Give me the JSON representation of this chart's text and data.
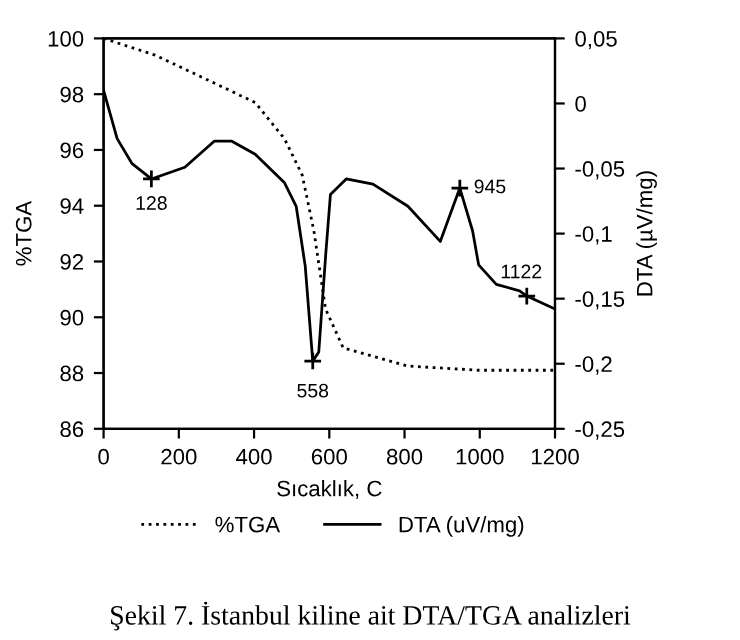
{
  "chart_data": {
    "type": "line",
    "xlabel": "Sıcaklık, C",
    "ylabel": "%TGA",
    "y2label": "DTA (µV/mg)",
    "x": [
      0,
      36,
      75,
      127,
      216,
      294,
      341,
      403,
      481,
      512,
      536,
      556,
      572,
      591,
      603,
      645,
      716,
      809,
      895,
      947,
      981,
      997,
      1044,
      1106,
      1125,
      1200
    ],
    "series": [
      {
        "name": "%TGA",
        "color": "#000000",
        "line_style": "dotted",
        "x": [
          0,
          137,
          294,
          403,
          481,
          528,
          559,
          590,
          637,
          809,
          997,
          1200
        ],
        "values": [
          100,
          99.4,
          98.4,
          97.7,
          96.4,
          95.1,
          93.1,
          90.3,
          88.9,
          88.25,
          88.1,
          88.1
        ]
      },
      {
        "name": "DTA (uV/mg)",
        "color": "#000000",
        "line_style": "solid",
        "axis": "y2",
        "values": [
          0.01,
          -0.027,
          -0.046,
          -0.058,
          -0.049,
          -0.029,
          -0.029,
          -0.039,
          -0.061,
          -0.079,
          -0.125,
          -0.198,
          -0.191,
          -0.114,
          -0.07,
          -0.058,
          -0.062,
          -0.079,
          -0.106,
          -0.065,
          -0.098,
          -0.124,
          -0.139,
          -0.144,
          -0.148,
          -0.158
        ]
      }
    ],
    "xlim": [
      0,
      1200
    ],
    "xticks": [
      0,
      200,
      400,
      600,
      800,
      1000,
      1200
    ],
    "ylim": [
      86,
      100
    ],
    "yticks": [
      86,
      88,
      90,
      92,
      94,
      96,
      98,
      100
    ],
    "y2lim": [
      -0.25,
      0.05
    ],
    "y2ticks": [
      {
        "value": -0.25,
        "label": "-0,25"
      },
      {
        "value": -0.2,
        "label": "-0,2"
      },
      {
        "value": -0.15,
        "label": "-0,15"
      },
      {
        "value": -0.1,
        "label": "-0,1"
      },
      {
        "value": -0.05,
        "label": "-0,05"
      },
      {
        "value": 0,
        "label": "0"
      },
      {
        "value": 0.05,
        "label": "0,05"
      }
    ],
    "annotations": [
      {
        "text": "128",
        "x": 127,
        "y": 94.96
      },
      {
        "text": "558",
        "x": 556,
        "y": 88.43
      },
      {
        "text": "945",
        "x": 947,
        "y": 94.63
      },
      {
        "text": "1122",
        "x": 1125,
        "y": 90.76
      },
      "Şekil 7. İstanbul kiline ait DTA/TGA analizleri"
    ],
    "legend": "bottom",
    "grid": false
  }
}
